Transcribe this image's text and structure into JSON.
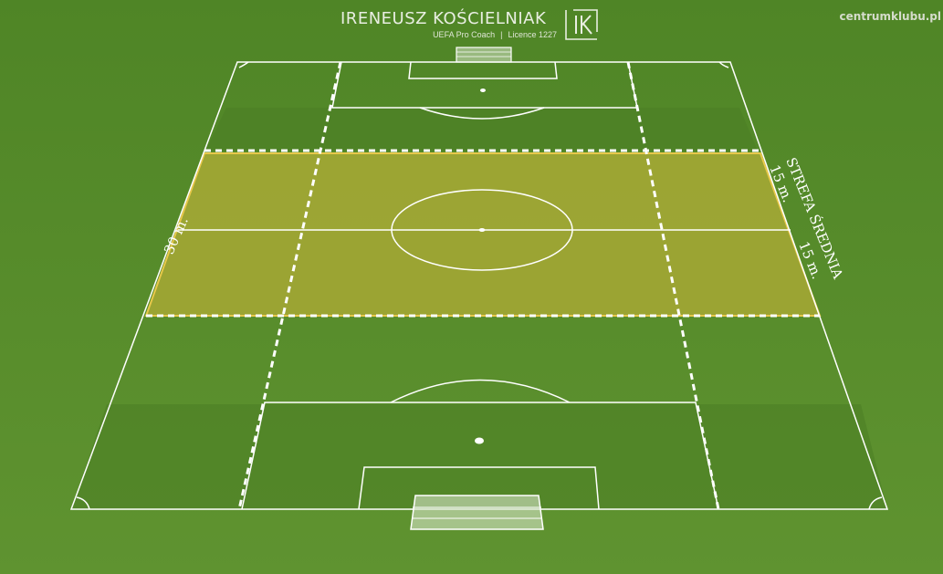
{
  "brand": {
    "name": "IRENEUSZ KOŚCIELNIAK",
    "role": "UEFA Pro Coach",
    "licence": "Licence 1227",
    "separator": "|",
    "logo_letters": "IK"
  },
  "site": "centrumklubu.pl",
  "diagram": {
    "zone_name": "STREFA ŚREDNIA",
    "zone_depth_label": "30 m.",
    "half_depth_upper": "15 m.",
    "half_depth_lower": "15 m."
  },
  "colors": {
    "grass": "#5a8f2c",
    "zone_fill": "#c8b63a",
    "zone_border": "#e8c84a",
    "lines": "#ffffff"
  }
}
